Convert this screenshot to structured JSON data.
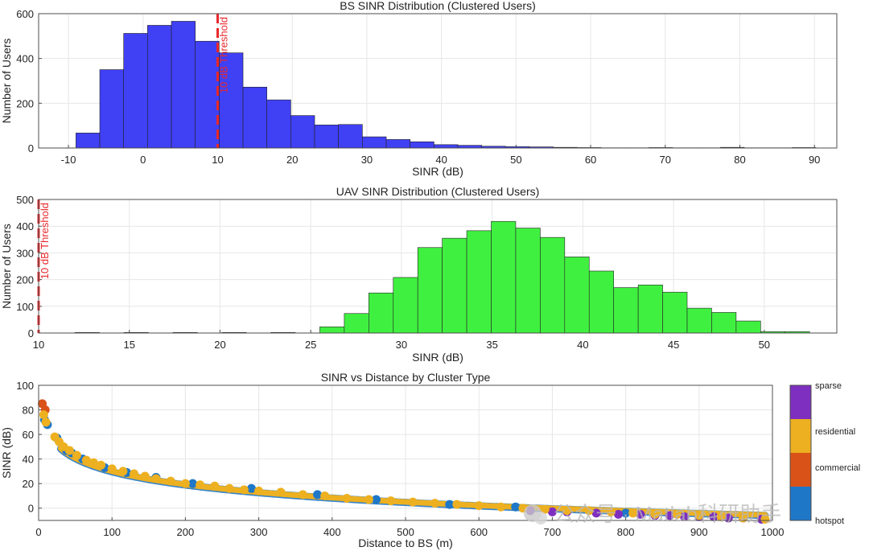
{
  "chart_data": [
    {
      "type": "bar",
      "title": "BS SINR Distribution (Clustered Users)",
      "xlabel": "SINR (dB)",
      "ylabel": "Number of Users",
      "xlim": [
        -14,
        93
      ],
      "ylim": [
        0,
        600
      ],
      "xticks": [
        -10,
        0,
        10,
        20,
        30,
        40,
        50,
        60,
        70,
        80,
        90
      ],
      "yticks": [
        0,
        200,
        400,
        600
      ],
      "bar_color": "#4040f5",
      "bin_width": 3.2,
      "bins_start": [
        -9,
        -5.8,
        -2.6,
        0.6,
        3.8,
        7.0,
        10.2,
        13.4,
        16.6,
        19.8,
        23.0,
        26.2,
        29.4,
        32.6,
        35.8,
        39.0,
        42.2,
        45.4,
        48.6,
        51.8,
        55.0,
        58.2,
        61.4,
        64.6,
        67.8,
        71.0,
        74.2,
        77.4,
        80.6,
        83.8,
        87.0
      ],
      "values": [
        67,
        350,
        512,
        548,
        566,
        477,
        425,
        272,
        215,
        145,
        103,
        105,
        50,
        38,
        28,
        15,
        12,
        8,
        6,
        5,
        3,
        2,
        1,
        1,
        2,
        1,
        1,
        3,
        1,
        1,
        2
      ],
      "threshold": {
        "x": 10,
        "label": "10 dB Threshold",
        "color": "#e8282b"
      },
      "grid": true
    },
    {
      "type": "bar",
      "title": "UAV SINR Distribution (Clustered Users)",
      "xlabel": "SINR (dB)",
      "ylabel": "Number of Users",
      "xlim": [
        10,
        54
      ],
      "ylim": [
        0,
        500
      ],
      "xticks": [
        10,
        15,
        20,
        25,
        30,
        35,
        40,
        45,
        50
      ],
      "yticks": [
        0,
        100,
        200,
        300,
        400,
        500
      ],
      "bar_color": "#40f040",
      "bin_width": 1.35,
      "bins_start": [
        12.0,
        14.7,
        17.4,
        20.1,
        22.8,
        25.5,
        26.85,
        28.2,
        29.55,
        30.9,
        32.25,
        33.6,
        34.95,
        36.3,
        37.65,
        39.0,
        40.35,
        41.7,
        43.05,
        44.4,
        45.75,
        47.1,
        48.45,
        49.8,
        51.15
      ],
      "values": [
        2,
        2,
        2,
        2,
        2,
        23,
        73,
        150,
        208,
        320,
        355,
        383,
        418,
        393,
        358,
        285,
        232,
        170,
        180,
        153,
        93,
        77,
        45,
        5,
        5
      ],
      "threshold": {
        "x": 10,
        "label": "10 dB Threshold",
        "color": "#e8282b"
      },
      "grid": true
    },
    {
      "type": "scatter",
      "title": "SINR vs Distance by Cluster Type",
      "xlabel": "Distance to BS (m)",
      "ylabel": "SINR (dB)",
      "xlim": [
        0,
        1000
      ],
      "ylim": [
        -10,
        100
      ],
      "xticks": [
        0,
        100,
        200,
        300,
        400,
        500,
        600,
        700,
        800,
        900,
        1000
      ],
      "yticks": [
        0,
        20,
        40,
        60,
        80,
        100
      ],
      "grid": true,
      "colorbar": {
        "categories": [
          "sparse",
          "residential",
          "commercial",
          "hotspot"
        ],
        "colors": [
          "#7e2fbf",
          "#edb020",
          "#d95319",
          "#1f77c8"
        ]
      },
      "series": [
        {
          "name": "commercial",
          "color": "#d95319",
          "points": [
            [
              5,
              85
            ],
            [
              9,
              80
            ]
          ]
        },
        {
          "name": "hotspot",
          "color": "#1f77c8",
          "points": [
            [
              8,
              72
            ],
            [
              12,
              68
            ],
            [
              25,
              57
            ],
            [
              38,
              47
            ],
            [
              45,
              45
            ],
            [
              60,
              40
            ],
            [
              90,
              33
            ],
            [
              120,
              29
            ],
            [
              160,
              25
            ],
            [
              210,
              20
            ],
            [
              290,
              16
            ],
            [
              380,
              11
            ],
            [
              460,
              7
            ],
            [
              560,
              3
            ],
            [
              650,
              1
            ],
            [
              800,
              -4
            ],
            [
              870,
              -5
            ]
          ]
        },
        {
          "name": "sparse",
          "color": "#7e2fbf",
          "points": [
            [
              670,
              -2
            ],
            [
              700,
              -3
            ],
            [
              720,
              -3
            ],
            [
              760,
              -4
            ],
            [
              790,
              -5
            ],
            [
              820,
              -5
            ],
            [
              840,
              -6
            ],
            [
              860,
              -6
            ],
            [
              880,
              -7
            ],
            [
              900,
              -7
            ],
            [
              920,
              -7
            ],
            [
              940,
              -8
            ],
            [
              960,
              -8
            ],
            [
              985,
              -9
            ]
          ]
        },
        {
          "name": "residential",
          "color": "#edb020",
          "points": [
            [
              7,
              76
            ],
            [
              10,
              70
            ],
            [
              22,
              58
            ],
            [
              28,
              54
            ],
            [
              34,
              50
            ],
            [
              42,
              47
            ],
            [
              52,
              43
            ],
            [
              65,
              39
            ],
            [
              75,
              37
            ],
            [
              85,
              35
            ],
            [
              100,
              32
            ],
            [
              115,
              30
            ],
            [
              130,
              28
            ],
            [
              145,
              26
            ],
            [
              160,
              24
            ],
            [
              180,
              22
            ],
            [
              200,
              20
            ],
            [
              220,
              19
            ],
            [
              240,
              18
            ],
            [
              260,
              16
            ],
            [
              280,
              15
            ],
            [
              300,
              14
            ],
            [
              330,
              13
            ],
            [
              360,
              11
            ],
            [
              390,
              10
            ],
            [
              420,
              8
            ],
            [
              450,
              7
            ],
            [
              480,
              6
            ],
            [
              510,
              5
            ],
            [
              540,
              4
            ],
            [
              570,
              3
            ],
            [
              600,
              2
            ],
            [
              630,
              1
            ],
            [
              660,
              0
            ],
            [
              690,
              -1
            ],
            [
              720,
              -2
            ],
            [
              750,
              -2
            ],
            [
              780,
              -3
            ],
            [
              810,
              -4
            ],
            [
              840,
              -5
            ],
            [
              870,
              -5
            ],
            [
              900,
              -6
            ],
            [
              930,
              -7
            ],
            [
              960,
              -8
            ],
            [
              990,
              -9
            ]
          ]
        }
      ]
    }
  ],
  "watermark": {
    "text": "公众号 · Matlab科研助手"
  }
}
